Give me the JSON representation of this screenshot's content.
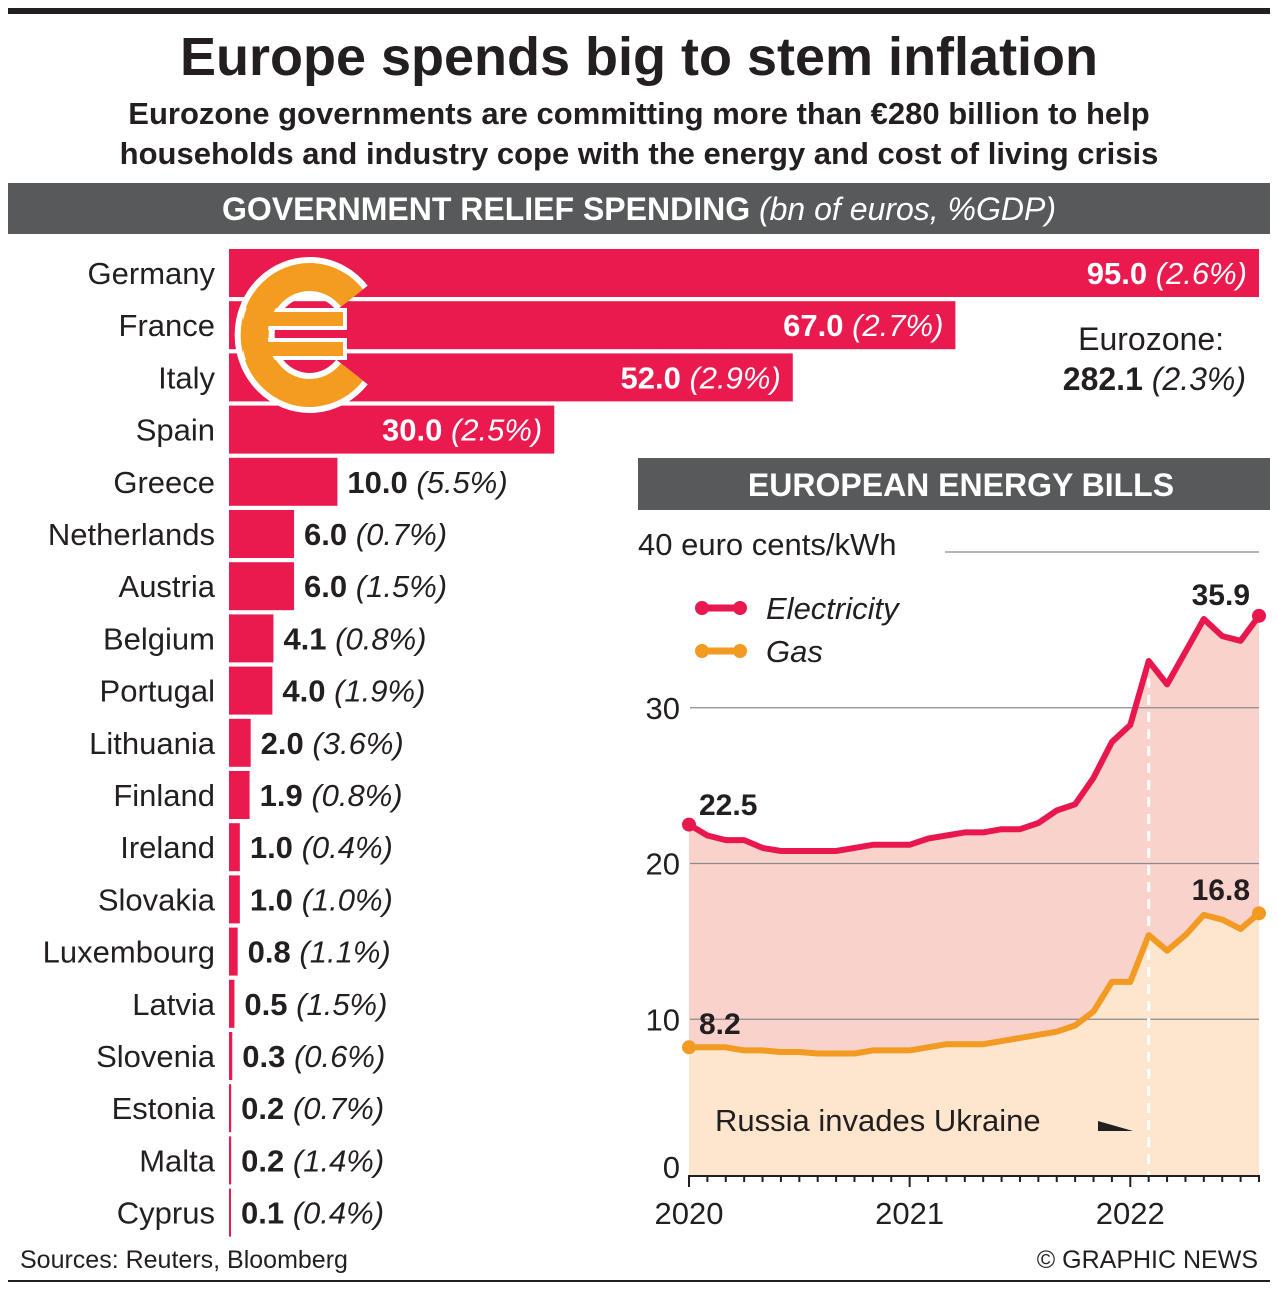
{
  "title": "Europe spends big to stem inflation",
  "subtitle_lines": [
    "Eurozone governments are committing more than €280 billion to help",
    "households and industry cope with the energy and cost of living crisis"
  ],
  "colors": {
    "bar": "#ea1a4f",
    "header_bg": "#58595b",
    "electricity": "#e8184e",
    "gas": "#f29a22",
    "electricity_fill": "#f9d2cc",
    "gas_fill": "#fde6cd",
    "euro_icon": "#f39c1f"
  },
  "icons": [
    "euro-icon"
  ],
  "source": "Sources: Reuters, Bloomberg",
  "credit": "© GRAPHIC NEWS",
  "chart_data": [
    {
      "type": "bar",
      "orientation": "horizontal",
      "header": "GOVERNMENT RELIEF SPENDING",
      "header_units": "(bn of euros, %GDP)",
      "categories": [
        "Germany",
        "France",
        "Italy",
        "Spain",
        "Greece",
        "Netherlands",
        "Austria",
        "Belgium",
        "Portugal",
        "Lithuania",
        "Finland",
        "Ireland",
        "Slovakia",
        "Luxembourg",
        "Latvia",
        "Slovenia",
        "Estonia",
        "Malta",
        "Cyprus"
      ],
      "values": [
        95.0,
        67.0,
        52.0,
        30.0,
        10.0,
        6.0,
        6.0,
        4.1,
        4.0,
        2.0,
        1.9,
        1.0,
        1.0,
        0.8,
        0.5,
        0.3,
        0.2,
        0.2,
        0.1
      ],
      "value_labels": [
        "95.0",
        "67.0",
        "52.0",
        "30.0",
        "10.0",
        "6.0",
        "6.0",
        "4.1",
        "4.0",
        "2.0",
        "1.9",
        "1.0",
        "1.0",
        "0.8",
        "0.5",
        "0.3",
        "0.2",
        "0.2",
        "0.1"
      ],
      "pct_gdp_labels": [
        "(2.6%)",
        "(2.7%)",
        "(2.9%)",
        "(2.5%)",
        "(5.5%)",
        "(0.7%)",
        "(1.5%)",
        "(0.8%)",
        "(1.9%)",
        "(3.6%)",
        "(0.8%)",
        "(0.4%)",
        "(1.0%)",
        "(1.1%)",
        "(1.5%)",
        "(0.6%)",
        "(0.7%)",
        "(1.4%)",
        "(0.4%)"
      ],
      "total_label": "Eurozone:",
      "total_value": "282.1",
      "total_pct": "(2.3%)"
    },
    {
      "type": "area",
      "header": "EUROPEAN ENERGY BILLS",
      "ylabel": "euro cents/kWh",
      "ylim": [
        0,
        40
      ],
      "yticks": [
        "0",
        "10",
        "20",
        "30",
        "40"
      ],
      "xticks": [
        "2020",
        "2021",
        "2022"
      ],
      "x_start": "2020-01",
      "x_end": "2022-08",
      "grid": true,
      "legend_position": "top-left",
      "series": [
        {
          "name": "Electricity",
          "values": [
            22.5,
            21.8,
            21.5,
            21.5,
            21.0,
            20.8,
            20.8,
            20.8,
            20.8,
            21.0,
            21.2,
            21.2,
            21.2,
            21.6,
            21.8,
            22.0,
            22.0,
            22.2,
            22.2,
            22.6,
            23.4,
            23.8,
            25.5,
            27.8,
            28.9,
            33.0,
            31.5,
            33.6,
            35.7,
            34.6,
            34.3,
            35.9
          ],
          "start_label": "22.5",
          "end_label": "35.9"
        },
        {
          "name": "Gas",
          "values": [
            8.2,
            8.2,
            8.2,
            8.0,
            8.0,
            7.9,
            7.9,
            7.8,
            7.8,
            7.8,
            8.0,
            8.0,
            8.0,
            8.2,
            8.4,
            8.4,
            8.4,
            8.6,
            8.8,
            9.0,
            9.2,
            9.6,
            10.5,
            12.4,
            12.4,
            15.4,
            14.4,
            15.4,
            16.7,
            16.4,
            15.8,
            16.8
          ],
          "start_label": "8.2",
          "end_label": "16.8"
        }
      ],
      "annotation": {
        "text": "Russia invades Ukraine",
        "date": "2022-02"
      }
    }
  ]
}
